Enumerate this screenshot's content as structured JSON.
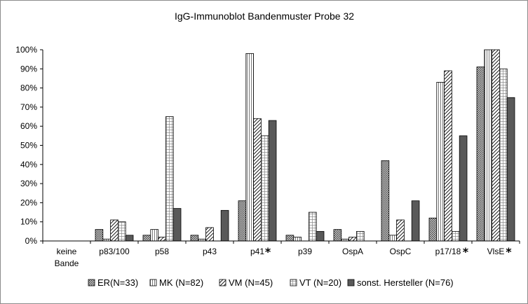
{
  "chart_data": {
    "type": "bar",
    "title": "IgG-Immunoblot Bandenmuster Probe 32",
    "xlabel": "",
    "ylabel": "",
    "ylim": [
      0,
      100
    ],
    "yticks": [
      "0%",
      "10%",
      "20%",
      "30%",
      "40%",
      "50%",
      "60%",
      "70%",
      "80%",
      "90%",
      "100%"
    ],
    "categories": [
      "keine\nBande",
      "p83/100",
      "p58",
      "p43",
      "p41",
      "p39",
      "OspA",
      "OspC",
      "p17/18",
      "VlsE"
    ],
    "starred_categories": [
      "p41",
      "p17/18",
      "VlsE"
    ],
    "star_symbol": "*",
    "legend_position": "bottom",
    "grid": false,
    "series": [
      {
        "name": "ER(N=33)",
        "pattern": "dots",
        "values": [
          0,
          6,
          3,
          3,
          21,
          3,
          6,
          42,
          12,
          91
        ]
      },
      {
        "name": "MK (N=82)",
        "pattern": "vlines",
        "values": [
          0,
          1,
          6,
          1,
          98,
          2,
          1,
          3,
          83,
          100
        ]
      },
      {
        "name": "VM (N=45)",
        "pattern": "diag",
        "values": [
          0,
          11,
          2,
          7,
          64,
          0,
          2,
          11,
          89,
          100
        ]
      },
      {
        "name": "VT (N=20)",
        "pattern": "grid",
        "values": [
          0,
          10,
          65,
          0,
          55,
          15,
          5,
          0,
          5,
          90
        ]
      },
      {
        "name": "sonst. Hersteller (N=76)",
        "pattern": "solid",
        "values": [
          0,
          3,
          17,
          16,
          63,
          5,
          0,
          21,
          55,
          75
        ]
      }
    ],
    "colors": {
      "solid": "#595959",
      "dots_bg": "#c8c8c8",
      "dots_fg": "#444444",
      "stroke": "#000000"
    }
  }
}
